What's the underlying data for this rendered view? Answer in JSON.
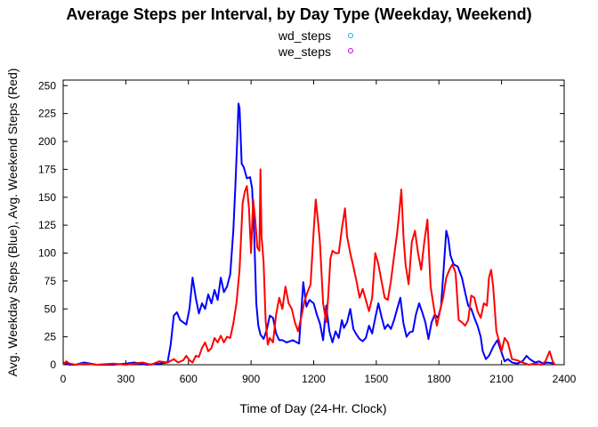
{
  "chart_data": {
    "type": "line",
    "title": "Average Steps per Interval, by Day Type (Weekday, Weekend)",
    "xlabel": "Time of Day (24-Hr. Clock)",
    "ylabel": "Avg. Weekday Steps (Blue), Avg. Weekend Steps (Red)",
    "xlim": [
      0,
      2400
    ],
    "ylim": [
      0,
      255
    ],
    "x_ticks": [
      "0",
      "300",
      "600",
      "900",
      "1200",
      "1500",
      "1800",
      "2100",
      "2400"
    ],
    "y_ticks": [
      "0",
      "25",
      "50",
      "75",
      "100",
      "125",
      "150",
      "175",
      "200",
      "225",
      "250"
    ],
    "legend_position": "top-center",
    "series": [
      {
        "name": "wd_steps",
        "color": "#0000ff",
        "legend_marker_color": "#00bcd4",
        "points": [
          [
            0,
            2
          ],
          [
            15,
            1
          ],
          [
            30,
            0
          ],
          [
            60,
            0
          ],
          [
            100,
            2
          ],
          [
            160,
            0
          ],
          [
            240,
            0
          ],
          [
            300,
            1
          ],
          [
            340,
            2
          ],
          [
            400,
            0
          ],
          [
            460,
            1
          ],
          [
            500,
            2
          ],
          [
            515,
            18
          ],
          [
            530,
            44
          ],
          [
            545,
            47
          ],
          [
            560,
            40
          ],
          [
            575,
            38
          ],
          [
            590,
            36
          ],
          [
            605,
            50
          ],
          [
            620,
            78
          ],
          [
            635,
            60
          ],
          [
            650,
            46
          ],
          [
            665,
            55
          ],
          [
            680,
            50
          ],
          [
            695,
            63
          ],
          [
            710,
            55
          ],
          [
            725,
            67
          ],
          [
            740,
            58
          ],
          [
            755,
            78
          ],
          [
            770,
            65
          ],
          [
            785,
            70
          ],
          [
            800,
            81
          ],
          [
            815,
            120
          ],
          [
            825,
            160
          ],
          [
            835,
            208
          ],
          [
            840,
            234
          ],
          [
            845,
            230
          ],
          [
            855,
            180
          ],
          [
            865,
            177
          ],
          [
            880,
            167
          ],
          [
            895,
            168
          ],
          [
            905,
            158
          ],
          [
            915,
            118
          ],
          [
            925,
            55
          ],
          [
            935,
            35
          ],
          [
            945,
            27
          ],
          [
            960,
            23
          ],
          [
            975,
            31
          ],
          [
            990,
            44
          ],
          [
            1005,
            42
          ],
          [
            1020,
            28
          ],
          [
            1035,
            22
          ],
          [
            1050,
            22
          ],
          [
            1070,
            20
          ],
          [
            1100,
            22
          ],
          [
            1130,
            19
          ],
          [
            1150,
            74
          ],
          [
            1165,
            52
          ],
          [
            1180,
            58
          ],
          [
            1200,
            55
          ],
          [
            1215,
            45
          ],
          [
            1230,
            37
          ],
          [
            1245,
            22
          ],
          [
            1260,
            53
          ],
          [
            1275,
            30
          ],
          [
            1290,
            20
          ],
          [
            1305,
            30
          ],
          [
            1320,
            24
          ],
          [
            1335,
            40
          ],
          [
            1345,
            33
          ],
          [
            1360,
            38
          ],
          [
            1375,
            50
          ],
          [
            1390,
            32
          ],
          [
            1405,
            27
          ],
          [
            1420,
            23
          ],
          [
            1435,
            21
          ],
          [
            1450,
            24
          ],
          [
            1465,
            35
          ],
          [
            1480,
            28
          ],
          [
            1495,
            42
          ],
          [
            1510,
            55
          ],
          [
            1525,
            43
          ],
          [
            1540,
            32
          ],
          [
            1555,
            36
          ],
          [
            1570,
            32
          ],
          [
            1585,
            40
          ],
          [
            1600,
            50
          ],
          [
            1615,
            60
          ],
          [
            1630,
            37
          ],
          [
            1645,
            25
          ],
          [
            1660,
            29
          ],
          [
            1675,
            30
          ],
          [
            1690,
            45
          ],
          [
            1705,
            55
          ],
          [
            1720,
            47
          ],
          [
            1735,
            38
          ],
          [
            1750,
            23
          ],
          [
            1765,
            38
          ],
          [
            1780,
            45
          ],
          [
            1795,
            42
          ],
          [
            1810,
            52
          ],
          [
            1825,
            92
          ],
          [
            1835,
            120
          ],
          [
            1845,
            113
          ],
          [
            1855,
            98
          ],
          [
            1870,
            90
          ],
          [
            1890,
            88
          ],
          [
            1910,
            78
          ],
          [
            1925,
            65
          ],
          [
            1940,
            53
          ],
          [
            1955,
            50
          ],
          [
            1970,
            42
          ],
          [
            1985,
            35
          ],
          [
            2000,
            25
          ],
          [
            2010,
            12
          ],
          [
            2025,
            5
          ],
          [
            2040,
            8
          ],
          [
            2060,
            16
          ],
          [
            2080,
            22
          ],
          [
            2100,
            11
          ],
          [
            2115,
            3
          ],
          [
            2130,
            5
          ],
          [
            2150,
            2
          ],
          [
            2175,
            1
          ],
          [
            2200,
            3
          ],
          [
            2220,
            8
          ],
          [
            2235,
            5
          ],
          [
            2260,
            2
          ],
          [
            2280,
            3
          ],
          [
            2300,
            1
          ],
          [
            2320,
            2
          ],
          [
            2355,
            1
          ]
        ]
      },
      {
        "name": "we_steps",
        "color": "#ff0000",
        "legend_marker_color": "#cc00cc",
        "points": [
          [
            0,
            0
          ],
          [
            15,
            3
          ],
          [
            30,
            1
          ],
          [
            60,
            0
          ],
          [
            100,
            1
          ],
          [
            160,
            0
          ],
          [
            240,
            1
          ],
          [
            300,
            0
          ],
          [
            380,
            2
          ],
          [
            420,
            0
          ],
          [
            460,
            3
          ],
          [
            500,
            2
          ],
          [
            530,
            5
          ],
          [
            550,
            2
          ],
          [
            575,
            4
          ],
          [
            590,
            8
          ],
          [
            605,
            4
          ],
          [
            620,
            2
          ],
          [
            635,
            8
          ],
          [
            650,
            7
          ],
          [
            665,
            15
          ],
          [
            680,
            20
          ],
          [
            695,
            12
          ],
          [
            710,
            15
          ],
          [
            725,
            24
          ],
          [
            740,
            20
          ],
          [
            755,
            26
          ],
          [
            770,
            20
          ],
          [
            785,
            25
          ],
          [
            800,
            24
          ],
          [
            815,
            37
          ],
          [
            830,
            55
          ],
          [
            845,
            85
          ],
          [
            860,
            145
          ],
          [
            870,
            155
          ],
          [
            880,
            160
          ],
          [
            890,
            140
          ],
          [
            900,
            100
          ],
          [
            910,
            148
          ],
          [
            920,
            130
          ],
          [
            930,
            105
          ],
          [
            940,
            102
          ],
          [
            945,
            175
          ],
          [
            950,
            115
          ],
          [
            960,
            92
          ],
          [
            970,
            40
          ],
          [
            980,
            18
          ],
          [
            990,
            24
          ],
          [
            1005,
            20
          ],
          [
            1020,
            45
          ],
          [
            1035,
            60
          ],
          [
            1050,
            50
          ],
          [
            1065,
            70
          ],
          [
            1080,
            55
          ],
          [
            1095,
            50
          ],
          [
            1110,
            38
          ],
          [
            1125,
            30
          ],
          [
            1140,
            42
          ],
          [
            1155,
            56
          ],
          [
            1170,
            65
          ],
          [
            1185,
            72
          ],
          [
            1200,
            120
          ],
          [
            1210,
            148
          ],
          [
            1220,
            130
          ],
          [
            1230,
            110
          ],
          [
            1245,
            55
          ],
          [
            1260,
            38
          ],
          [
            1270,
            62
          ],
          [
            1280,
            95
          ],
          [
            1290,
            102
          ],
          [
            1305,
            100
          ],
          [
            1320,
            100
          ],
          [
            1335,
            122
          ],
          [
            1350,
            140
          ],
          [
            1360,
            115
          ],
          [
            1375,
            100
          ],
          [
            1390,
            88
          ],
          [
            1405,
            75
          ],
          [
            1420,
            60
          ],
          [
            1435,
            68
          ],
          [
            1450,
            58
          ],
          [
            1465,
            48
          ],
          [
            1480,
            60
          ],
          [
            1495,
            100
          ],
          [
            1510,
            90
          ],
          [
            1525,
            75
          ],
          [
            1540,
            60
          ],
          [
            1555,
            58
          ],
          [
            1570,
            75
          ],
          [
            1585,
            97
          ],
          [
            1600,
            118
          ],
          [
            1610,
            137
          ],
          [
            1620,
            157
          ],
          [
            1630,
            115
          ],
          [
            1640,
            90
          ],
          [
            1655,
            72
          ],
          [
            1670,
            110
          ],
          [
            1685,
            120
          ],
          [
            1700,
            100
          ],
          [
            1715,
            85
          ],
          [
            1730,
            110
          ],
          [
            1745,
            130
          ],
          [
            1760,
            70
          ],
          [
            1775,
            52
          ],
          [
            1790,
            35
          ],
          [
            1805,
            48
          ],
          [
            1820,
            60
          ],
          [
            1835,
            78
          ],
          [
            1850,
            85
          ],
          [
            1865,
            90
          ],
          [
            1880,
            82
          ],
          [
            1895,
            40
          ],
          [
            1910,
            38
          ],
          [
            1925,
            35
          ],
          [
            1940,
            40
          ],
          [
            1955,
            62
          ],
          [
            1970,
            60
          ],
          [
            1985,
            48
          ],
          [
            2000,
            42
          ],
          [
            2015,
            55
          ],
          [
            2030,
            53
          ],
          [
            2040,
            78
          ],
          [
            2050,
            85
          ],
          [
            2060,
            70
          ],
          [
            2075,
            30
          ],
          [
            2090,
            20
          ],
          [
            2100,
            12
          ],
          [
            2115,
            24
          ],
          [
            2130,
            20
          ],
          [
            2150,
            5
          ],
          [
            2175,
            4
          ],
          [
            2200,
            2
          ],
          [
            2230,
            0
          ],
          [
            2260,
            1
          ],
          [
            2290,
            0
          ],
          [
            2310,
            3
          ],
          [
            2330,
            12
          ],
          [
            2345,
            3
          ],
          [
            2355,
            0
          ]
        ]
      }
    ]
  }
}
